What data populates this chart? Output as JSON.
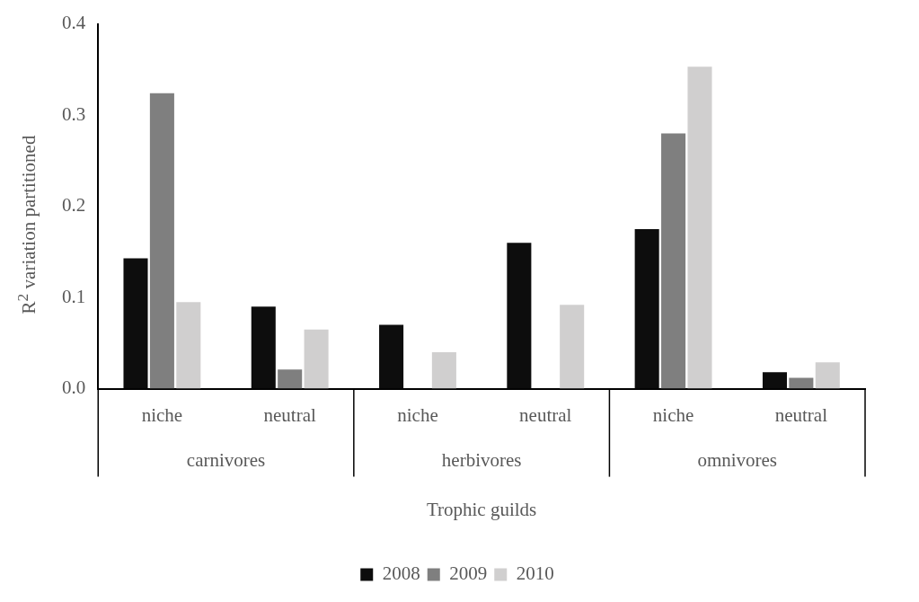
{
  "chart_data": {
    "type": "bar",
    "xlabel": "Trophic guilds",
    "ylabel": "R$^{2}$ variation partitioned",
    "categories": [
      "niche",
      "neutral",
      "niche",
      "neutral",
      "niche",
      "neutral"
    ],
    "annotations": [
      "carnivores",
      "herbivores",
      "omnivores"
    ],
    "series": [
      {
        "name": "2008",
        "color": "#0d0d0d",
        "values": [
          0.143,
          0.09,
          0.07,
          0.16,
          0.175,
          0.018
        ]
      },
      {
        "name": "2009",
        "color": "#7f7f7f",
        "values": [
          0.324,
          0.021,
          null,
          null,
          0.28,
          0.012
        ]
      },
      {
        "name": "2010",
        "color": "#d0cfcf",
        "values": [
          0.095,
          0.065,
          0.04,
          0.092,
          0.353,
          0.029
        ]
      }
    ],
    "ylim": [
      0,
      0.4
    ],
    "yticks": [
      {
        "value": 0,
        "label": "0.0"
      },
      {
        "value": 0.1,
        "label": "0.1"
      },
      {
        "value": 0.2,
        "label": "0.2"
      },
      {
        "value": 0.3,
        "label": "0.3"
      },
      {
        "value": 0.4,
        "label": "0.4"
      }
    ],
    "grid": false,
    "legend": "bottom"
  }
}
